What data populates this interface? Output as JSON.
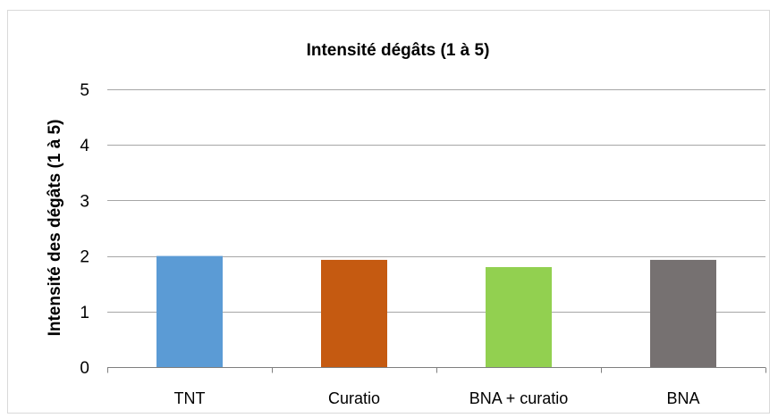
{
  "chart_data": {
    "type": "bar",
    "title": "Intensité dégâts (1 à 5)",
    "xlabel": "",
    "ylabel": "Intensité des dégâts (1 à 5)",
    "categories": [
      "TNT",
      "Curatio",
      "BNA + curatio",
      "BNA"
    ],
    "series": [
      {
        "values": [
          2.0,
          1.93,
          1.8,
          1.93
        ]
      }
    ],
    "bar_colors": [
      "#5B9BD5",
      "#C55A11",
      "#92D050",
      "#767171"
    ],
    "ylim": [
      0,
      5
    ],
    "yticks": [
      "0",
      "1",
      "2",
      "3",
      "4",
      "5"
    ],
    "grid": true,
    "legend": "none"
  }
}
